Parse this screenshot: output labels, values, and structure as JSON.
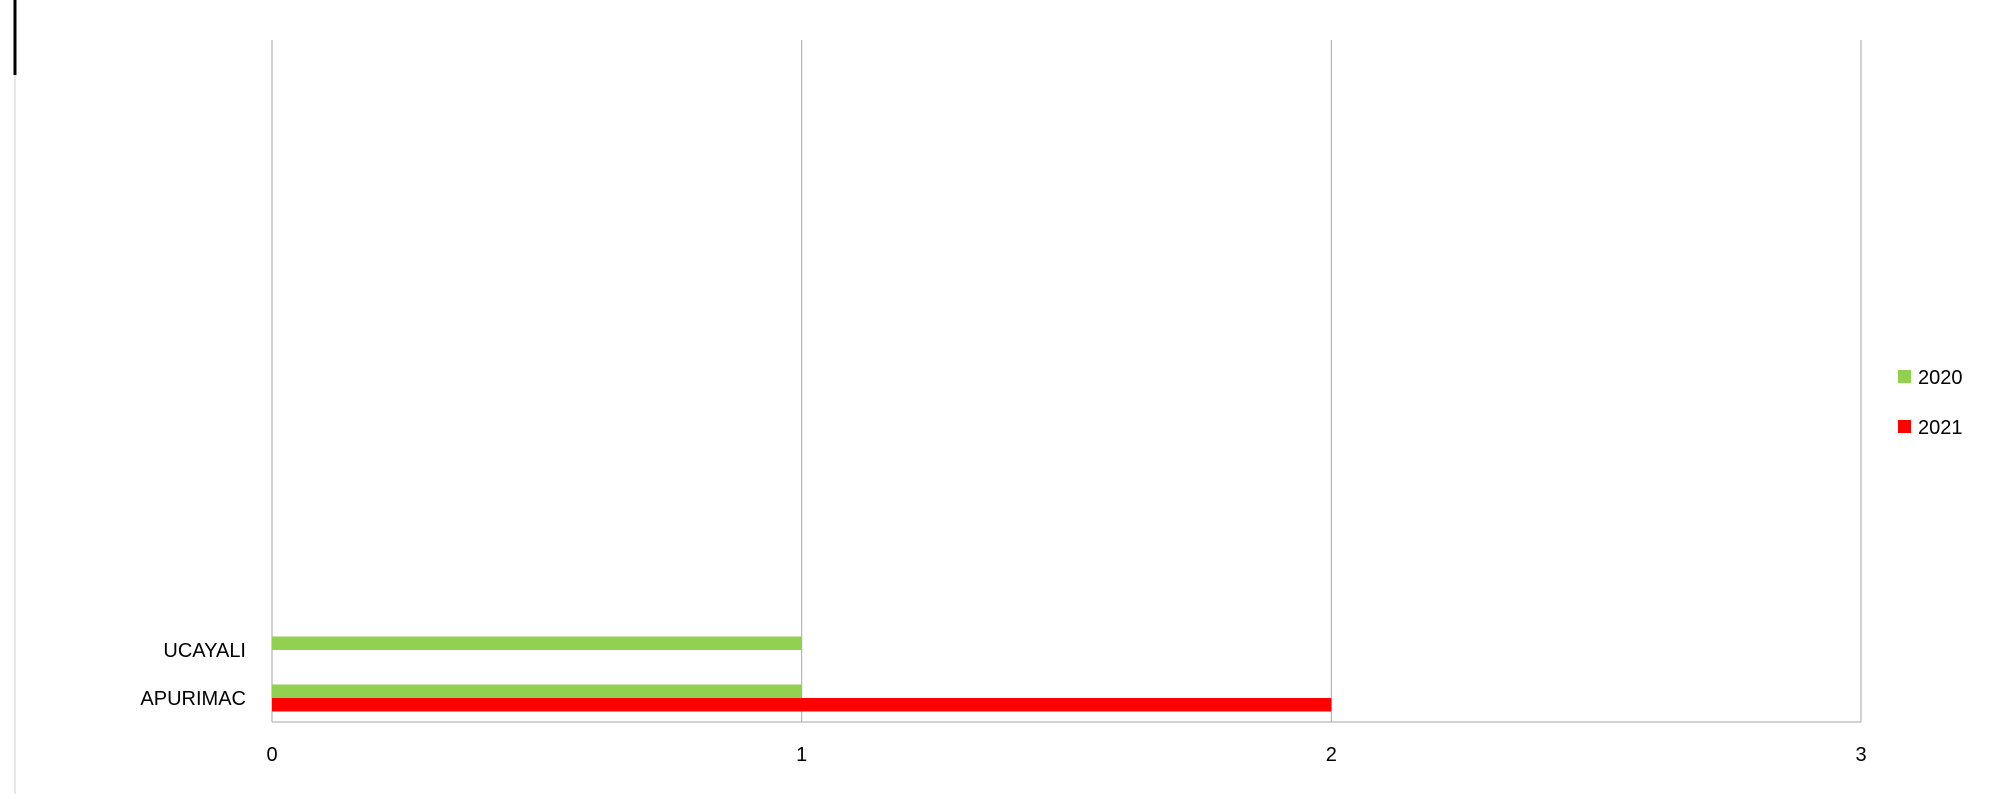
{
  "chart_data": {
    "type": "bar",
    "orientation": "horizontal",
    "categories": [
      "APURIMAC",
      "UCAYALI"
    ],
    "series": [
      {
        "name": "2020",
        "color": "#92D050",
        "values": [
          1,
          1
        ]
      },
      {
        "name": "2021",
        "color": "#FF0000",
        "values": [
          2,
          0
        ]
      }
    ],
    "xlim": [
      0,
      3
    ],
    "xticks": [
      "0",
      "1",
      "2",
      "3"
    ],
    "grid": "vertical",
    "legend": "right"
  }
}
